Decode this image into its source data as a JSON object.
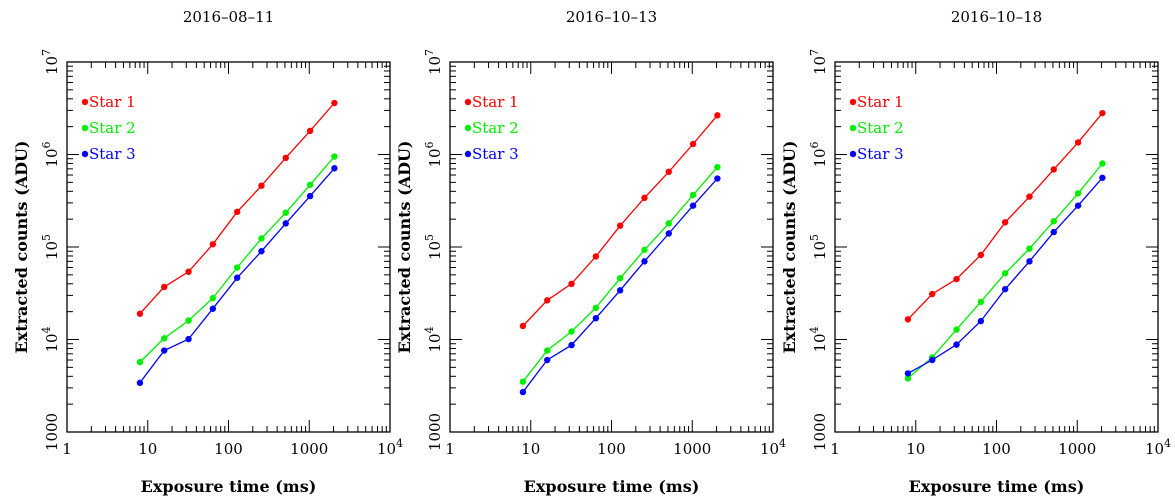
{
  "colors": {
    "star1": "#ff0000",
    "star2": "#00ee00",
    "star3": "#0000ff",
    "axes": "#000000"
  },
  "chart_data": [
    {
      "type": "line",
      "title": "2016–08–11",
      "xlabel": "Exposure time (ms)",
      "ylabel": "Extracted counts (ADU)",
      "xscale": "log",
      "yscale": "log",
      "xlim": [
        1,
        10000
      ],
      "ylim": [
        1000,
        10000000
      ],
      "xticklabels": [
        {
          "v": 1,
          "t": "1"
        },
        {
          "v": 10,
          "t": "10"
        },
        {
          "v": 100,
          "t": "100"
        },
        {
          "v": 1000,
          "t": "1000"
        },
        {
          "v": 10000,
          "t": "10",
          "sup": "4"
        }
      ],
      "yticklabels": [
        {
          "v": 1000,
          "t": "1000"
        },
        {
          "v": 10000,
          "t": "10",
          "sup": "4"
        },
        {
          "v": 100000,
          "t": "10",
          "sup": "5"
        },
        {
          "v": 1000000,
          "t": "10",
          "sup": "6"
        },
        {
          "v": 10000000,
          "t": "10",
          "sup": "7"
        }
      ],
      "legend_position": "top-left",
      "x": [
        8,
        16,
        32,
        64,
        128,
        256,
        512,
        1024,
        2048
      ],
      "series": [
        {
          "name": "Star 1",
          "color": "#ff0000",
          "values": [
            19000,
            37000,
            54000,
            107000,
            240000,
            460000,
            920000,
            1800000,
            3600000
          ]
        },
        {
          "name": "Star 2",
          "color": "#00ee00",
          "values": [
            5700,
            10300,
            16000,
            28000,
            60000,
            124000,
            235000,
            470000,
            950000
          ]
        },
        {
          "name": "Star 3",
          "color": "#0000ff",
          "values": [
            3400,
            7600,
            10100,
            21500,
            46500,
            90000,
            180000,
            355000,
            710000
          ]
        }
      ]
    },
    {
      "type": "line",
      "title": "2016–10–13",
      "xlabel": "Exposure time (ms)",
      "ylabel": "Extracted counts (ADU)",
      "xscale": "log",
      "yscale": "log",
      "xlim": [
        1,
        10000
      ],
      "ylim": [
        1000,
        10000000
      ],
      "xticklabels": [
        {
          "v": 1,
          "t": "1"
        },
        {
          "v": 10,
          "t": "10"
        },
        {
          "v": 100,
          "t": "100"
        },
        {
          "v": 1000,
          "t": "1000"
        },
        {
          "v": 10000,
          "t": "10",
          "sup": "4"
        }
      ],
      "yticklabels": [
        {
          "v": 1000,
          "t": "1000"
        },
        {
          "v": 10000,
          "t": "10",
          "sup": "4"
        },
        {
          "v": 100000,
          "t": "10",
          "sup": "5"
        },
        {
          "v": 1000000,
          "t": "10",
          "sup": "6"
        },
        {
          "v": 10000000,
          "t": "10",
          "sup": "7"
        }
      ],
      "legend_position": "top-left",
      "x": [
        8,
        16,
        32,
        64,
        128,
        256,
        512,
        1024,
        2048
      ],
      "series": [
        {
          "name": "Star 1",
          "color": "#ff0000",
          "values": [
            14000,
            26500,
            40000,
            79000,
            170000,
            340000,
            650000,
            1300000,
            2650000
          ]
        },
        {
          "name": "Star 2",
          "color": "#00ee00",
          "values": [
            3500,
            7600,
            12200,
            22000,
            46000,
            93000,
            180000,
            365000,
            730000
          ]
        },
        {
          "name": "Star 3",
          "color": "#0000ff",
          "values": [
            2700,
            6000,
            8700,
            17000,
            34000,
            70000,
            140000,
            280000,
            550000
          ]
        }
      ]
    },
    {
      "type": "line",
      "title": "2016–10–18",
      "xlabel": "Exposure time (ms)",
      "ylabel": "Extracted counts (ADU)",
      "xscale": "log",
      "yscale": "log",
      "xlim": [
        1,
        10000
      ],
      "ylim": [
        1000,
        10000000
      ],
      "xticklabels": [
        {
          "v": 1,
          "t": "1"
        },
        {
          "v": 10,
          "t": "10"
        },
        {
          "v": 100,
          "t": "100"
        },
        {
          "v": 1000,
          "t": "1000"
        },
        {
          "v": 10000,
          "t": "10",
          "sup": "4"
        }
      ],
      "yticklabels": [
        {
          "v": 1000,
          "t": "1000"
        },
        {
          "v": 10000,
          "t": "10",
          "sup": "4"
        },
        {
          "v": 100000,
          "t": "10",
          "sup": "5"
        },
        {
          "v": 1000000,
          "t": "10",
          "sup": "6"
        },
        {
          "v": 10000000,
          "t": "10",
          "sup": "7"
        }
      ],
      "legend_position": "top-left",
      "x": [
        8,
        16,
        32,
        64,
        128,
        256,
        512,
        1024,
        2048
      ],
      "series": [
        {
          "name": "Star 1",
          "color": "#ff0000",
          "values": [
            16500,
            31000,
            45000,
            82000,
            185000,
            350000,
            690000,
            1350000,
            2800000
          ]
        },
        {
          "name": "Star 2",
          "color": "#00ee00",
          "values": [
            3800,
            6400,
            12800,
            25500,
            52000,
            96000,
            190000,
            380000,
            800000
          ]
        },
        {
          "name": "Star 3",
          "color": "#0000ff",
          "values": [
            4300,
            6000,
            8800,
            15800,
            35000,
            70000,
            145000,
            280000,
            560000
          ]
        }
      ]
    }
  ]
}
